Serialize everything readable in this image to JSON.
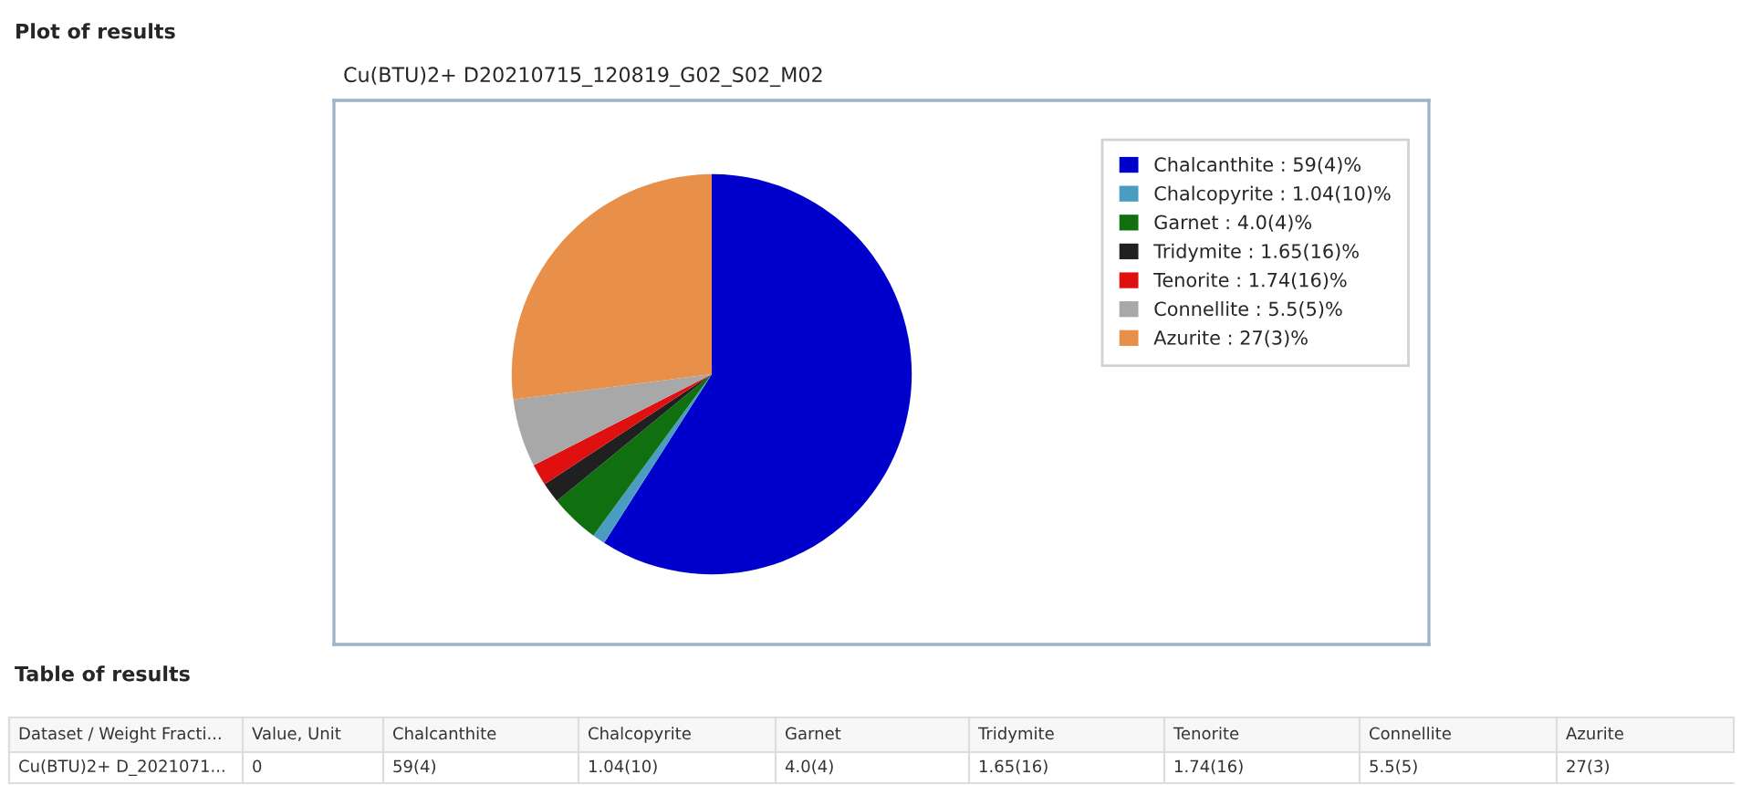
{
  "chart_data": [
    {
      "type": "pie",
      "title": "Cu(BTU)2+ D20210715_120819_G02_S02_M02",
      "annotations": [
        "Plot of results"
      ],
      "categories": [
        "Chalcanthite : 59(4)%",
        "Chalcopyrite : 1.04(10)%",
        "Garnet : 4.0(4)%",
        "Tridymite : 1.65(16)%",
        "Tenorite : 1.74(16)%",
        "Connellite : 5.5(5)%",
        "Azurite : 27(3)%"
      ],
      "values": [
        59,
        1.04,
        4.0,
        1.65,
        1.74,
        5.5,
        27
      ],
      "colors": [
        "#0000cc",
        "#4a9cc0",
        "#107010",
        "#202020",
        "#e01010",
        "#a8a8a8",
        "#e8904a"
      ],
      "legend": "right"
    },
    {
      "type": "other",
      "title": "Table of results",
      "categories": [
        "Dataset / Weight Fracti...",
        "Value, Unit",
        "Chalcanthite",
        "Chalcopyrite",
        "Garnet",
        "Tridymite",
        "Tenorite",
        "Connellite",
        "Azurite"
      ],
      "value_labels": [
        "Cu(BTU)2+ D_2021071...",
        "0",
        "59(4)",
        "1.04(10)",
        "4.0(4)",
        "1.65(16)",
        "1.74(16)",
        "5.5(5)",
        "27(3)"
      ]
    }
  ]
}
